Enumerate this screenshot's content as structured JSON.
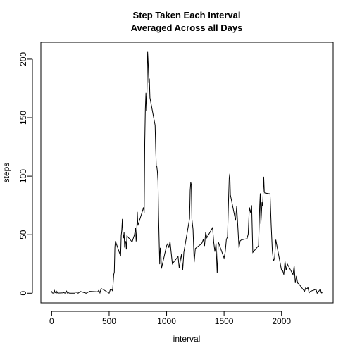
{
  "chart_data": {
    "type": "line",
    "title": [
      "Step Taken Each Interval",
      "Averaged Across all Days"
    ],
    "xlabel": "interval",
    "ylabel": "steps",
    "x": [
      0,
      5,
      10,
      15,
      20,
      25,
      30,
      35,
      40,
      45,
      50,
      55,
      100,
      105,
      110,
      115,
      120,
      125,
      130,
      135,
      140,
      145,
      150,
      155,
      200,
      210,
      230,
      250,
      300,
      330,
      400,
      410,
      420,
      430,
      440,
      450,
      500,
      510,
      520,
      530,
      540,
      545,
      550,
      555,
      600,
      605,
      610,
      615,
      620,
      625,
      630,
      635,
      640,
      645,
      650,
      655,
      700,
      720,
      730,
      735,
      740,
      745,
      750,
      800,
      805,
      810,
      815,
      820,
      825,
      830,
      835,
      840,
      845,
      850,
      855,
      900,
      905,
      910,
      915,
      920,
      925,
      930,
      935,
      940,
      945,
      950,
      955,
      1000,
      1010,
      1020,
      1030,
      1040,
      1050,
      1100,
      1110,
      1120,
      1130,
      1140,
      1150,
      1200,
      1205,
      1210,
      1215,
      1220,
      1230,
      1240,
      1250,
      1300,
      1310,
      1320,
      1330,
      1340,
      1350,
      1400,
      1410,
      1420,
      1430,
      1440,
      1450,
      1500,
      1510,
      1520,
      1530,
      1540,
      1545,
      1550,
      1555,
      1600,
      1610,
      1620,
      1630,
      1640,
      1650,
      1700,
      1710,
      1720,
      1730,
      1740,
      1750,
      1800,
      1810,
      1815,
      1820,
      1825,
      1830,
      1835,
      1840,
      1845,
      1850,
      1855,
      1900,
      1910,
      1920,
      1930,
      1940,
      1950,
      2000,
      2010,
      2020,
      2030,
      2040,
      2050,
      2100,
      2110,
      2120,
      2130,
      2140,
      2150,
      2200,
      2210,
      2220,
      2230,
      2240,
      2250,
      2300,
      2310,
      2320,
      2330,
      2340,
      2345,
      2350,
      2355
    ],
    "series": [
      {
        "name": "steps",
        "color": "#000000",
        "values": [
          1.7,
          0.3,
          0.1,
          0.2,
          0.1,
          2.1,
          0.5,
          0.9,
          0,
          1.5,
          0.3,
          0.1,
          0.3,
          0.7,
          0.2,
          0.3,
          0,
          1.1,
          1.8,
          0.2,
          0.2,
          0.4,
          0.3,
          0,
          0,
          1.1,
          0,
          1.5,
          0,
          1.6,
          1.2,
          2.6,
          0.3,
          4.1,
          3.5,
          3.1,
          0,
          3.0,
          3.3,
          2.1,
          16,
          18,
          39.5,
          44.5,
          31.5,
          49.3,
          53.8,
          63.5,
          50,
          47,
          52,
          39,
          44,
          44.2,
          37.4,
          49,
          43.8,
          49.9,
          55.7,
          44.3,
          52.3,
          69.5,
          57.8,
          73.4,
          68.2,
          129.4,
          157.5,
          171.2,
          155.4,
          177.3,
          206.2,
          195.9,
          179.6,
          183.4,
          167.0,
          143.5,
          124.0,
          109.1,
          108.1,
          103.7,
          95.9,
          66.2,
          45.2,
          24.8,
          38.8,
          35.0,
          21.1,
          40.6,
          42.4,
          38.9,
          44.3,
          34.5,
          25.1,
          31.4,
          21.3,
          28.4,
          33.3,
          19.6,
          35.0,
          63.9,
          87.6,
          94.8,
          92.8,
          63.4,
          54.5,
          26.5,
          38.2,
          42.0,
          43.3,
          46.2,
          40.4,
          52.5,
          47.4,
          56.0,
          43.6,
          35.5,
          42.6,
          17.1,
          43.8,
          30.0,
          35.2,
          46.0,
          48.1,
          82.9,
          98.7,
          102.1,
          84.0,
          62.1,
          74.5,
          56.4,
          38.6,
          44.7,
          45.5,
          46.6,
          50.5,
          73.4,
          68.9,
          75.1,
          34.8,
          40.7,
          74.7,
          85.3,
          59.3,
          67.8,
          77.7,
          74.2,
          85.3,
          99.5,
          86.6,
          85.6,
          84.9,
          58.0,
          36.1,
          27.4,
          30.2,
          45.7,
          19.6,
          19.3,
          15.9,
          27.3,
          19.5,
          25.1,
          15.9,
          23.5,
          8.7,
          14.7,
          8.7,
          8.1,
          1.6,
          4.6,
          3.7,
          4.8,
          0.3,
          1.6,
          3.3,
          0,
          1.0,
          2.6,
          3.3,
          0.6,
          0.2,
          1.1
        ]
      }
    ],
    "xlim": [
      -94.2,
      2449.2
    ],
    "ylim": [
      -8.25,
      214.4
    ],
    "xticks": [
      0,
      500,
      1000,
      1500,
      2000
    ],
    "yticks": [
      0,
      50,
      100,
      150,
      200
    ]
  }
}
